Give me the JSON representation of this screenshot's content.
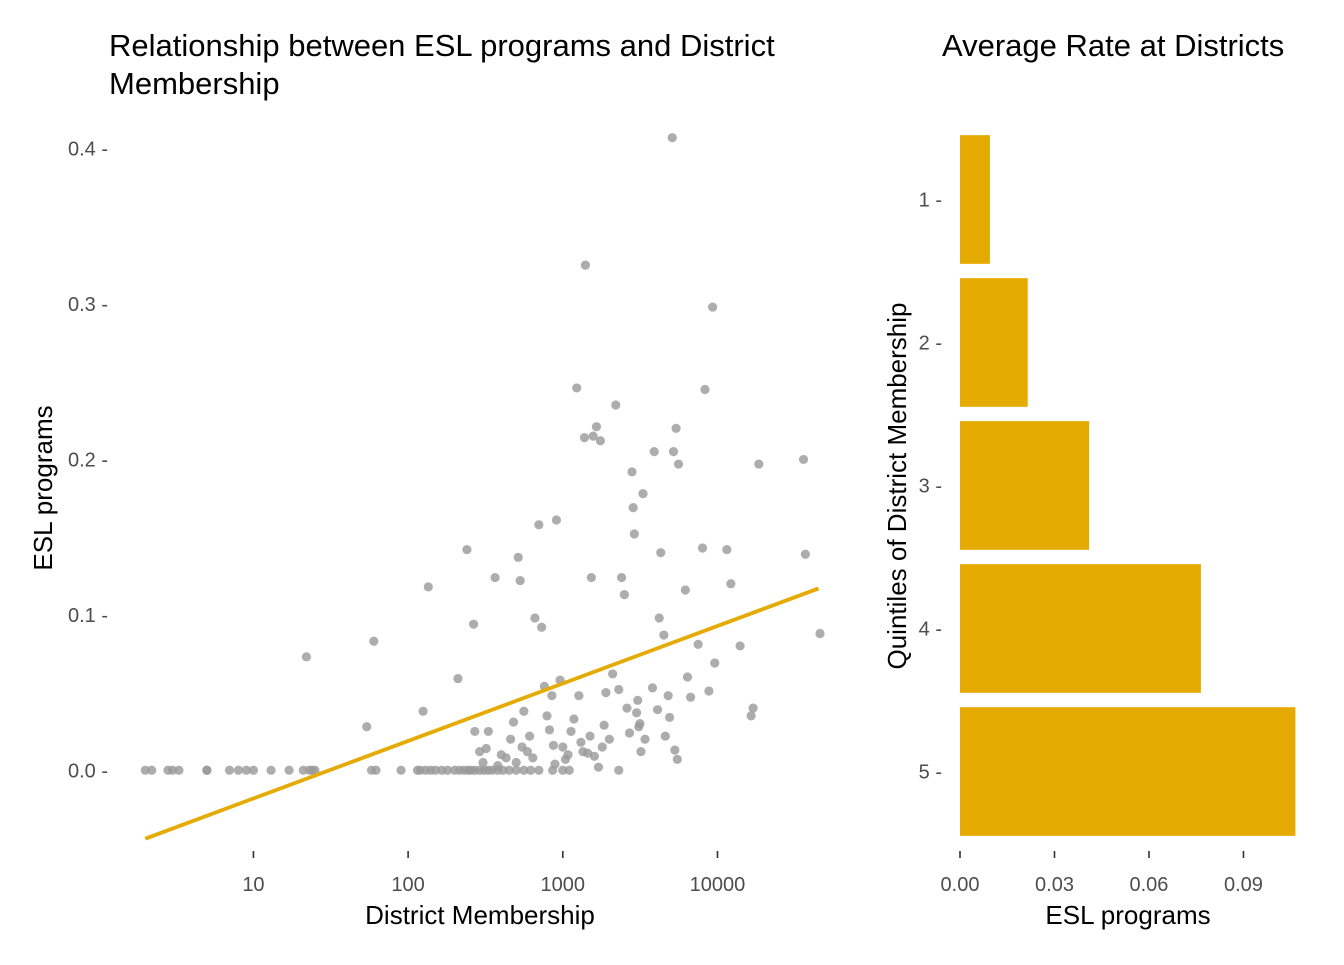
{
  "colors": {
    "accent": "#E6AB02",
    "point": "#999999",
    "tick_text": "#4D4D4D",
    "background": "#FFFFFF"
  },
  "chart_data": [
    {
      "type": "scatter",
      "title": "Relationship between ESL programs and District Membership",
      "title_lines": [
        "Relationship between ESL programs and District",
        "Membership"
      ],
      "xlabel": "District Membership",
      "ylabel": "ESL programs",
      "x_scale": "log10",
      "xlim": [
        1.5,
        55000
      ],
      "ylim": [
        -0.05,
        0.41
      ],
      "x_ticks": [
        10,
        100,
        1000,
        10000
      ],
      "x_tick_labels": [
        "10",
        "100",
        "1000",
        "10000"
      ],
      "y_ticks": [
        0.0,
        0.1,
        0.2,
        0.3,
        0.4
      ],
      "y_tick_labels": [
        "0.0 -",
        "0.1 -",
        "0.2 -",
        "0.3 -",
        "0.4 -"
      ],
      "grid": false,
      "legend": "none",
      "points": [
        [
          2,
          0
        ],
        [
          2.2,
          0
        ],
        [
          2.8,
          0
        ],
        [
          3,
          0
        ],
        [
          3.3,
          0
        ],
        [
          5,
          0
        ],
        [
          5,
          0
        ],
        [
          7,
          0
        ],
        [
          8,
          0
        ],
        [
          9,
          0
        ],
        [
          10,
          0
        ],
        [
          13,
          0
        ],
        [
          17,
          0
        ],
        [
          21,
          0
        ],
        [
          23,
          0
        ],
        [
          24,
          0
        ],
        [
          25,
          0
        ],
        [
          22,
          0.073
        ],
        [
          54,
          0.028
        ],
        [
          58,
          0
        ],
        [
          60,
          0.083
        ],
        [
          62,
          0
        ],
        [
          90,
          0
        ],
        [
          115,
          0
        ],
        [
          120,
          0
        ],
        [
          130,
          0
        ],
        [
          135,
          0.118
        ],
        [
          140,
          0
        ],
        [
          150,
          0
        ],
        [
          165,
          0
        ],
        [
          180,
          0
        ],
        [
          200,
          0
        ],
        [
          215,
          0
        ],
        [
          230,
          0
        ],
        [
          245,
          0
        ],
        [
          255,
          0
        ],
        [
          270,
          0
        ],
        [
          290,
          0
        ],
        [
          310,
          0
        ],
        [
          330,
          0
        ],
        [
          350,
          0
        ],
        [
          380,
          0
        ],
        [
          410,
          0
        ],
        [
          450,
          0
        ],
        [
          500,
          0
        ],
        [
          560,
          0
        ],
        [
          620,
          0
        ],
        [
          700,
          0
        ],
        [
          860,
          0
        ],
        [
          1000,
          0
        ],
        [
          1100,
          0
        ],
        [
          2300,
          0
        ],
        [
          125,
          0.038
        ],
        [
          210,
          0.059
        ],
        [
          240,
          0.142
        ],
        [
          265,
          0.094
        ],
        [
          270,
          0.025
        ],
        [
          290,
          0.012
        ],
        [
          305,
          0.005
        ],
        [
          320,
          0.014
        ],
        [
          330,
          0.025
        ],
        [
          365,
          0.124
        ],
        [
          380,
          0.003
        ],
        [
          400,
          0.01
        ],
        [
          430,
          0.008
        ],
        [
          460,
          0.02
        ],
        [
          480,
          0.031
        ],
        [
          500,
          0.005
        ],
        [
          515,
          0.137
        ],
        [
          530,
          0.122
        ],
        [
          545,
          0.015
        ],
        [
          560,
          0.038
        ],
        [
          590,
          0.012
        ],
        [
          610,
          0.022
        ],
        [
          640,
          0.008
        ],
        [
          660,
          0.098
        ],
        [
          700,
          0.158
        ],
        [
          730,
          0.092
        ],
        [
          760,
          0.054
        ],
        [
          790,
          0.035
        ],
        [
          820,
          0.026
        ],
        [
          850,
          0.048
        ],
        [
          870,
          0.016
        ],
        [
          890,
          0.004
        ],
        [
          910,
          0.161
        ],
        [
          960,
          0.058
        ],
        [
          1000,
          0.015
        ],
        [
          1040,
          0.007
        ],
        [
          1080,
          0.01
        ],
        [
          1130,
          0.025
        ],
        [
          1180,
          0.033
        ],
        [
          1230,
          0.246
        ],
        [
          1270,
          0.048
        ],
        [
          1310,
          0.018
        ],
        [
          1350,
          0.012
        ],
        [
          1380,
          0.214
        ],
        [
          1400,
          0.325
        ],
        [
          1450,
          0.011
        ],
        [
          1500,
          0.022
        ],
        [
          1530,
          0.124
        ],
        [
          1570,
          0.215
        ],
        [
          1600,
          0.009
        ],
        [
          1650,
          0.221
        ],
        [
          1700,
          0.002
        ],
        [
          1750,
          0.212
        ],
        [
          1800,
          0.015
        ],
        [
          1850,
          0.029
        ],
        [
          1900,
          0.05
        ],
        [
          2000,
          0.02
        ],
        [
          2100,
          0.062
        ],
        [
          2200,
          0.235
        ],
        [
          2300,
          0.052
        ],
        [
          2400,
          0.124
        ],
        [
          2500,
          0.113
        ],
        [
          2600,
          0.04
        ],
        [
          2700,
          0.024
        ],
        [
          2800,
          0.192
        ],
        [
          2850,
          0.169
        ],
        [
          2900,
          0.152
        ],
        [
          3000,
          0.037
        ],
        [
          3050,
          0.045
        ],
        [
          3100,
          0.028
        ],
        [
          3150,
          0.03
        ],
        [
          3200,
          0.012
        ],
        [
          3300,
          0.178
        ],
        [
          3400,
          0.02
        ],
        [
          3800,
          0.053
        ],
        [
          3900,
          0.205
        ],
        [
          4100,
          0.039
        ],
        [
          4200,
          0.098
        ],
        [
          4300,
          0.14
        ],
        [
          4500,
          0.087
        ],
        [
          4600,
          0.022
        ],
        [
          4800,
          0.048
        ],
        [
          4900,
          0.034
        ],
        [
          5100,
          0.407
        ],
        [
          5200,
          0.205
        ],
        [
          5300,
          0.013
        ],
        [
          5400,
          0.22
        ],
        [
          5500,
          0.007
        ],
        [
          5600,
          0.197
        ],
        [
          6200,
          0.116
        ],
        [
          6400,
          0.06
        ],
        [
          6700,
          0.047
        ],
        [
          7500,
          0.081
        ],
        [
          8000,
          0.143
        ],
        [
          8300,
          0.245
        ],
        [
          8800,
          0.051
        ],
        [
          9300,
          0.298
        ],
        [
          9600,
          0.069
        ],
        [
          11500,
          0.142
        ],
        [
          12200,
          0.12
        ],
        [
          14000,
          0.08
        ],
        [
          16500,
          0.035
        ],
        [
          17000,
          0.04
        ],
        [
          18500,
          0.197
        ],
        [
          36000,
          0.2
        ],
        [
          37000,
          0.139
        ],
        [
          46000,
          0.088
        ]
      ],
      "trend_line": {
        "x": [
          2,
          45000
        ],
        "y": [
          -0.044,
          0.117
        ]
      }
    },
    {
      "type": "bar",
      "orientation": "horizontal",
      "title": "Average Rate at Districts",
      "xlabel": "ESL programs",
      "ylabel": "Quintiles of District Membership",
      "categories": [
        "1",
        "2",
        "3",
        "4",
        "5"
      ],
      "category_tick_labels": [
        "1 -",
        "2 -",
        "3 -",
        "4 -",
        "5 -"
      ],
      "values": [
        0.0095,
        0.0215,
        0.041,
        0.0765,
        0.1065
      ],
      "xlim": [
        0,
        0.107
      ],
      "x_ticks": [
        0.0,
        0.03,
        0.06,
        0.09
      ],
      "x_tick_labels": [
        "0.00",
        "0.03",
        "0.06",
        "0.09"
      ],
      "grid": false,
      "legend": "none"
    }
  ]
}
